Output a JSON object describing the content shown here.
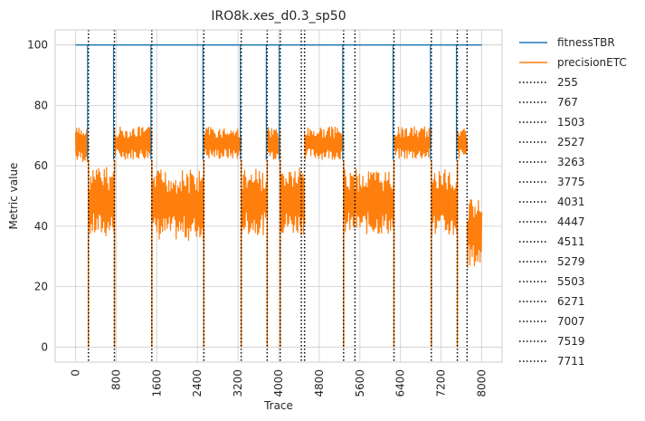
{
  "chart_data": {
    "type": "line",
    "title": "IRO8k.xes_d0.3_sp50",
    "xlabel": "Trace",
    "ylabel": "Metric value",
    "xlim": [
      -400,
      8400
    ],
    "ylim": [
      -5,
      105
    ],
    "xticks": [
      0,
      800,
      1600,
      2400,
      3200,
      4000,
      4800,
      5600,
      6400,
      7200,
      8000
    ],
    "yticks": [
      0,
      20,
      40,
      60,
      80,
      100
    ],
    "grid": true,
    "legend_position": "outside-right",
    "series": [
      {
        "name": "fitnessTBR",
        "color": "#1f77b4",
        "x": [
          0,
          8000
        ],
        "y": [
          100,
          100
        ]
      },
      {
        "name": "precisionETC",
        "color": "#ff7f0e",
        "segments": [
          {
            "x0": 0,
            "x1": 255,
            "low": 61,
            "high": 73
          },
          {
            "x0": 256,
            "x1": 767,
            "low": 36,
            "high": 60
          },
          {
            "x0": 768,
            "x1": 1503,
            "low": 62,
            "high": 73
          },
          {
            "x0": 1504,
            "x1": 2527,
            "low": 35,
            "high": 59
          },
          {
            "x0": 2528,
            "x1": 3263,
            "low": 62,
            "high": 73
          },
          {
            "x0": 3264,
            "x1": 3775,
            "low": 37,
            "high": 59
          },
          {
            "x0": 3776,
            "x1": 4031,
            "low": 62,
            "high": 73
          },
          {
            "x0": 4032,
            "x1": 4511,
            "low": 37,
            "high": 60
          },
          {
            "x0": 4512,
            "x1": 5279,
            "low": 62,
            "high": 73
          },
          {
            "x0": 5280,
            "x1": 6271,
            "low": 37,
            "high": 59
          },
          {
            "x0": 6272,
            "x1": 7007,
            "low": 62,
            "high": 73
          },
          {
            "x0": 7008,
            "x1": 7519,
            "low": 36,
            "high": 59
          },
          {
            "x0": 7520,
            "x1": 7711,
            "low": 62,
            "high": 73
          },
          {
            "x0": 7712,
            "x1": 8000,
            "low": 26,
            "high": 49
          }
        ],
        "drops_to_zero_at": [
          255,
          767,
          1503,
          2527,
          3263,
          3775,
          4031,
          5279,
          6271,
          7007,
          7519
        ]
      }
    ],
    "vlines": {
      "style": "dotted",
      "color": "#000000",
      "values": [
        255,
        767,
        1503,
        2527,
        3263,
        3775,
        4031,
        4447,
        4511,
        5279,
        5503,
        6271,
        7007,
        7519,
        7711
      ],
      "labels": [
        "255",
        "767",
        "1503",
        "2527",
        "3263",
        "3775",
        "4031",
        "4447",
        "4511",
        "5279",
        "5503",
        "6271",
        "7007",
        "7519",
        "7711"
      ]
    }
  }
}
